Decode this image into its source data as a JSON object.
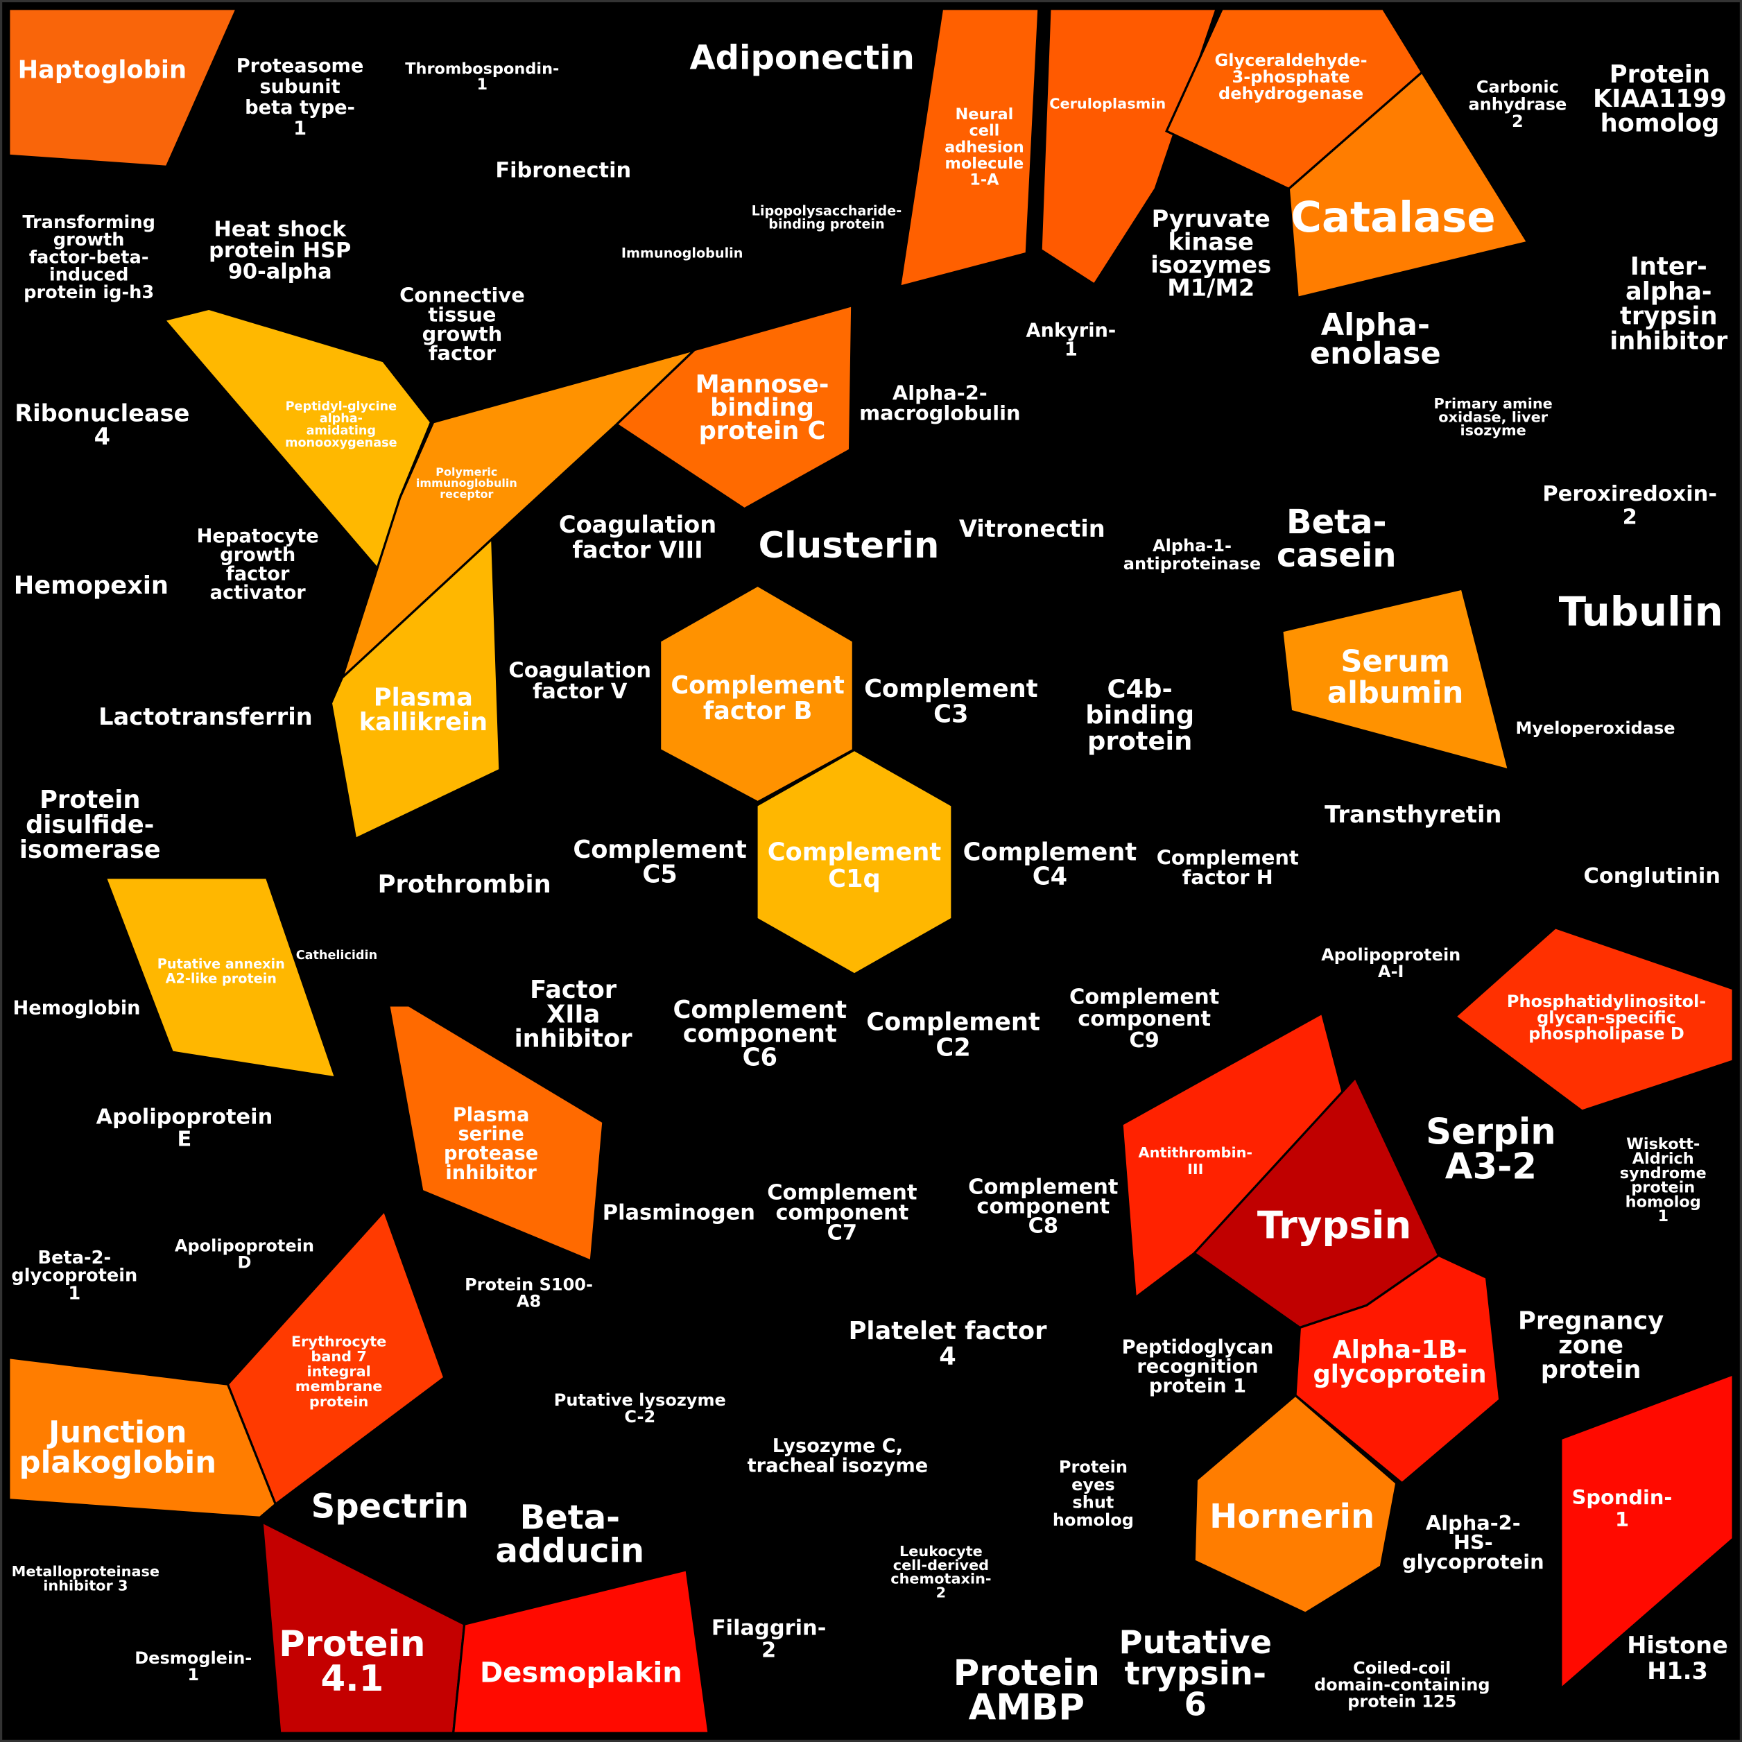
{
  "nodes": [
    {
      "lines": [
        "Haptoglobin"
      ],
      "color": "#f9650a"
    },
    {
      "lines": [
        "Proteasome",
        "subunit",
        "beta type-",
        "1"
      ]
    },
    {
      "lines": [
        "Thrombospondin-",
        "1"
      ]
    },
    {
      "lines": [
        "Adiponectin"
      ]
    },
    {
      "lines": [
        "Neural",
        "cell",
        "adhesion",
        "molecule",
        "1-A"
      ],
      "color": "#ff6000"
    },
    {
      "lines": [
        "Ceruloplasmin"
      ],
      "color": "#ff5a00"
    },
    {
      "lines": [
        "Glyceraldehyde-",
        "3-phosphate",
        "dehydrogenase"
      ],
      "color": "#ff6200"
    },
    {
      "lines": [
        "Carbonic",
        "anhydrase",
        "2"
      ]
    },
    {
      "lines": [
        "Protein",
        "KIAA1199",
        "homolog"
      ]
    },
    {
      "lines": [
        "Fibronectin"
      ]
    },
    {
      "lines": [
        "Lipopolysaccharide-",
        "binding protein"
      ]
    },
    {
      "lines": [
        "Catalase"
      ],
      "color": "#ff7d00"
    },
    {
      "lines": [
        "Transforming",
        "growth",
        "factor-beta-",
        "induced",
        "protein ig-h3"
      ]
    },
    {
      "lines": [
        "Heat shock",
        "protein HSP",
        "90-alpha"
      ]
    },
    {
      "lines": [
        "Immunoglobulin"
      ]
    },
    {
      "lines": [
        "Pyruvate",
        "kinase",
        "isozymes",
        "M1/M2"
      ]
    },
    {
      "lines": [
        "Inter-",
        "alpha-",
        "trypsin",
        "inhibitor"
      ]
    },
    {
      "lines": [
        "Connective",
        "tissue",
        "growth",
        "factor"
      ]
    },
    {
      "lines": [
        "Ankyrin-",
        "1"
      ]
    },
    {
      "lines": [
        "Alpha-",
        "enolase"
      ]
    },
    {
      "lines": [
        "Peptidyl-glycine",
        "alpha-",
        "amidating",
        "monooxygenase"
      ],
      "color": "#ffb800"
    },
    {
      "lines": [
        "Mannose-",
        "binding",
        "protein C"
      ],
      "color": "#ff6a00"
    },
    {
      "lines": [
        "Polymeric",
        "immunoglobulin",
        "receptor"
      ],
      "color": "#ff9200"
    },
    {
      "lines": [
        "Ribonuclease",
        "4"
      ]
    },
    {
      "lines": [
        "Alpha-2-",
        "macroglobulin"
      ]
    },
    {
      "lines": [
        "Primary amine",
        "oxidase, liver",
        "isozyme"
      ]
    },
    {
      "lines": [
        "Peroxiredoxin-",
        "2"
      ]
    },
    {
      "lines": [
        "Coagulation",
        "factor VIII"
      ]
    },
    {
      "lines": [
        "Clusterin"
      ]
    },
    {
      "lines": [
        "Vitronectin"
      ]
    },
    {
      "lines": [
        "Alpha-1-",
        "antiproteinase"
      ]
    },
    {
      "lines": [
        "Beta-",
        "casein"
      ]
    },
    {
      "lines": [
        "Hepatocyte",
        "growth",
        "factor",
        "activator"
      ]
    },
    {
      "lines": [
        "Hemopexin"
      ]
    },
    {
      "lines": [
        "Tubulin"
      ]
    },
    {
      "lines": [
        "Complement",
        "factor B"
      ],
      "color": "#ff9200"
    },
    {
      "lines": [
        "Coagulation",
        "factor V"
      ]
    },
    {
      "lines": [
        "Complement",
        "C3"
      ]
    },
    {
      "lines": [
        "C4b-",
        "binding",
        "protein"
      ]
    },
    {
      "lines": [
        "Serum",
        "albumin"
      ],
      "color": "#ff9200"
    },
    {
      "lines": [
        "Plasma",
        "kallikrein"
      ],
      "color": "#ffb700"
    },
    {
      "lines": [
        "Lactotransferrin"
      ]
    },
    {
      "lines": [
        "Myeloperoxidase"
      ]
    },
    {
      "lines": [
        "Protein",
        "disulfide-",
        "isomerase"
      ]
    },
    {
      "lines": [
        "Transthyretin"
      ]
    },
    {
      "lines": [
        "Complement",
        "C1q"
      ],
      "color": "#ffb700"
    },
    {
      "lines": [
        "Complement",
        "C5"
      ]
    },
    {
      "lines": [
        "Complement",
        "C4"
      ]
    },
    {
      "lines": [
        "Complement",
        "factor H"
      ]
    },
    {
      "lines": [
        "Conglutinin"
      ]
    },
    {
      "lines": [
        "Prothrombin"
      ]
    },
    {
      "lines": [
        "Putative annexin",
        "A2-like protein"
      ],
      "color": "#ffb700"
    },
    {
      "lines": [
        "Cathelicidin"
      ]
    },
    {
      "lines": [
        "Apolipoprotein",
        "A-I"
      ]
    },
    {
      "lines": [
        "Phosphatidylinositol-",
        "glycan-specific",
        "phospholipase D"
      ],
      "color": "#ff3000"
    },
    {
      "lines": [
        "Factor",
        "XIIa",
        "inhibitor"
      ]
    },
    {
      "lines": [
        "Complement",
        "component",
        "C6"
      ]
    },
    {
      "lines": [
        "Complement",
        "C2"
      ]
    },
    {
      "lines": [
        "Complement",
        "component",
        "C9"
      ]
    },
    {
      "lines": [
        "Hemoglobin"
      ]
    },
    {
      "lines": [
        "Apolipoprotein",
        "E"
      ]
    },
    {
      "lines": [
        "Plasma",
        "serine",
        "protease",
        "inhibitor"
      ],
      "color": "#ff6a00"
    },
    {
      "lines": [
        "Antithrombin-",
        "III"
      ],
      "color": "#ff2200"
    },
    {
      "lines": [
        "Serpin",
        "A3-2"
      ]
    },
    {
      "lines": [
        "Wiskott-",
        "Aldrich",
        "syndrome",
        "protein",
        "homolog",
        "1"
      ]
    },
    {
      "lines": [
        "Trypsin"
      ],
      "color": "#c00000"
    },
    {
      "lines": [
        "Complement",
        "component",
        "C7"
      ]
    },
    {
      "lines": [
        "Complement",
        "component",
        "C8"
      ]
    },
    {
      "lines": [
        "Plasminogen"
      ]
    },
    {
      "lines": [
        "Beta-2-",
        "glycoprotein",
        "1"
      ]
    },
    {
      "lines": [
        "Apolipoprotein",
        "D"
      ]
    },
    {
      "lines": [
        "Protein S100-",
        "A8"
      ]
    },
    {
      "lines": [
        "Erythrocyte",
        "band 7",
        "integral",
        "membrane",
        "protein"
      ],
      "color": "#ff3a00"
    },
    {
      "lines": [
        "Pregnancy",
        "zone",
        "protein"
      ]
    },
    {
      "lines": [
        "Platelet factor",
        "4"
      ]
    },
    {
      "lines": [
        "Peptidoglycan",
        "recognition",
        "protein 1"
      ]
    },
    {
      "lines": [
        "Alpha-1B-",
        "glycoprotein"
      ],
      "color": "#ff1800"
    },
    {
      "lines": [
        "Putative lysozyme",
        "C-2"
      ]
    },
    {
      "lines": [
        "Junction",
        "plakoglobin"
      ],
      "color": "#ff7d00"
    },
    {
      "lines": [
        "Spondin-",
        "1"
      ],
      "color": "#ff0a00"
    },
    {
      "lines": [
        "Lysozyme C,",
        "tracheal isozyme"
      ]
    },
    {
      "lines": [
        "Protein",
        "eyes",
        "shut",
        "homolog"
      ]
    },
    {
      "lines": [
        "Hornerin"
      ],
      "color": "#ff7d00"
    },
    {
      "lines": [
        "Spectrin"
      ]
    },
    {
      "lines": [
        "Beta-",
        "adducin"
      ]
    },
    {
      "lines": [
        "Alpha-2-",
        "HS-",
        "glycoprotein"
      ]
    },
    {
      "lines": [
        "Leukocyte",
        "cell-derived",
        "chemotaxin-",
        "2"
      ]
    },
    {
      "lines": [
        "Metalloproteinase",
        "inhibitor 3"
      ]
    },
    {
      "lines": [
        "Protein",
        "4.1"
      ],
      "color": "#c40000"
    },
    {
      "lines": [
        "Desmoplakin"
      ],
      "color": "#ff0a00"
    },
    {
      "lines": [
        "Filaggrin-",
        "2"
      ]
    },
    {
      "lines": [
        "Desmoglein-",
        "1"
      ]
    },
    {
      "lines": [
        "Protein",
        "AMBP"
      ]
    },
    {
      "lines": [
        "Putative",
        "trypsin-",
        "6"
      ]
    },
    {
      "lines": [
        "Coiled-coil",
        "domain-containing",
        "protein 125"
      ]
    },
    {
      "lines": [
        "Histone",
        "H1.3"
      ]
    }
  ]
}
